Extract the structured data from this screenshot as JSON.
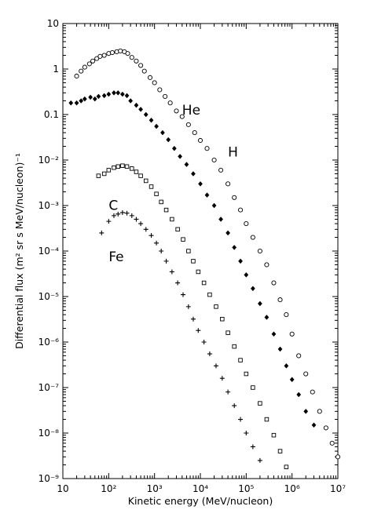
{
  "chart_data": {
    "type": "scatter",
    "title": "",
    "xlabel": "Kinetic energy (MeV/nucleon)",
    "ylabel": "Differential flux (m² sr s MeV/nucleon)⁻¹",
    "xscale": "log",
    "yscale": "log",
    "xlim": [
      10,
      10000000
    ],
    "ylim": [
      1e-09,
      10
    ],
    "grid": false,
    "legend": "none (series labelled inline)",
    "x_ticks": [
      10,
      100,
      1000,
      10000,
      100000,
      1000000,
      10000000
    ],
    "x_tick_labels": [
      "10",
      "10²",
      "10³",
      "10⁴",
      "10⁵",
      "10⁶",
      "10⁷"
    ],
    "y_ticks": [
      1e-09,
      1e-08,
      1e-07,
      1e-06,
      1e-05,
      0.0001,
      0.001,
      0.01,
      0.1,
      1,
      10
    ],
    "y_tick_labels": [
      "10⁻⁹",
      "10⁻⁸",
      "10⁻⁷",
      "10⁻⁶",
      "10⁻⁵",
      "10⁻⁴",
      "10⁻³",
      "10⁻²",
      "0.1",
      "1",
      "10"
    ],
    "series": [
      {
        "name": "H",
        "marker": "circle",
        "label_at": [
          40000,
          0.012
        ],
        "points": [
          [
            20,
            0.7
          ],
          [
            25,
            0.9
          ],
          [
            30,
            1.1
          ],
          [
            38,
            1.3
          ],
          [
            45,
            1.5
          ],
          [
            55,
            1.7
          ],
          [
            65,
            1.9
          ],
          [
            80,
            2.0
          ],
          [
            100,
            2.2
          ],
          [
            120,
            2.3
          ],
          [
            150,
            2.4
          ],
          [
            180,
            2.5
          ],
          [
            220,
            2.4
          ],
          [
            260,
            2.2
          ],
          [
            320,
            1.8
          ],
          [
            400,
            1.5
          ],
          [
            500,
            1.2
          ],
          [
            600,
            0.9
          ],
          [
            800,
            0.65
          ],
          [
            1000,
            0.5
          ],
          [
            1300,
            0.35
          ],
          [
            1700,
            0.25
          ],
          [
            2200,
            0.18
          ],
          [
            3000,
            0.12
          ],
          [
            4000,
            0.09
          ],
          [
            5500,
            0.06
          ],
          [
            7500,
            0.04
          ],
          [
            10000,
            0.027
          ],
          [
            14000,
            0.018
          ],
          [
            20000,
            0.01
          ],
          [
            28000,
            0.006
          ],
          [
            40000,
            0.003
          ],
          [
            55000,
            0.0015
          ],
          [
            75000,
            0.0008
          ],
          [
            100000,
            0.0004
          ],
          [
            140000,
            0.0002
          ],
          [
            200000,
            0.0001
          ],
          [
            280000,
            5e-05
          ],
          [
            400000,
            2e-05
          ],
          [
            550000,
            8.5e-06
          ],
          [
            750000,
            4e-06
          ],
          [
            1000000,
            1.5e-06
          ],
          [
            1400000,
            5e-07
          ],
          [
            2000000,
            2e-07
          ],
          [
            2800000,
            8e-08
          ],
          [
            4000000,
            3e-08
          ],
          [
            5500000,
            1.3e-08
          ],
          [
            7500000,
            6e-09
          ],
          [
            10000000,
            3e-09
          ]
        ]
      },
      {
        "name": "He",
        "marker": "diamond",
        "label_at": [
          4000,
          0.1
        ],
        "points": [
          [
            15,
            0.18
          ],
          [
            20,
            0.18
          ],
          [
            25,
            0.2
          ],
          [
            30,
            0.22
          ],
          [
            40,
            0.24
          ],
          [
            50,
            0.22
          ],
          [
            60,
            0.25
          ],
          [
            80,
            0.26
          ],
          [
            100,
            0.28
          ],
          [
            130,
            0.3
          ],
          [
            160,
            0.3
          ],
          [
            200,
            0.28
          ],
          [
            250,
            0.26
          ],
          [
            300,
            0.2
          ],
          [
            400,
            0.16
          ],
          [
            500,
            0.13
          ],
          [
            650,
            0.1
          ],
          [
            850,
            0.075
          ],
          [
            1100,
            0.055
          ],
          [
            1500,
            0.04
          ],
          [
            2000,
            0.028
          ],
          [
            2700,
            0.018
          ],
          [
            3600,
            0.012
          ],
          [
            5000,
            0.008
          ],
          [
            7000,
            0.005
          ],
          [
            10000,
            0.003
          ],
          [
            14000,
            0.0017
          ],
          [
            20000,
            0.001
          ],
          [
            28000,
            0.0005
          ],
          [
            40000,
            0.00025
          ],
          [
            55000,
            0.00012
          ],
          [
            75000,
            6e-05
          ],
          [
            100000,
            3e-05
          ],
          [
            140000,
            1.5e-05
          ],
          [
            200000,
            7e-06
          ],
          [
            280000,
            3.5e-06
          ],
          [
            400000,
            1.5e-06
          ],
          [
            550000,
            7e-07
          ],
          [
            750000,
            3e-07
          ],
          [
            1000000,
            1.5e-07
          ],
          [
            1400000,
            7e-08
          ],
          [
            2000000,
            3e-08
          ],
          [
            3000000,
            1.5e-08
          ]
        ]
      },
      {
        "name": "C",
        "marker": "square",
        "label_at": [
          100,
          0.0008
        ],
        "points": [
          [
            60,
            0.0045
          ],
          [
            80,
            0.005
          ],
          [
            100,
            0.006
          ],
          [
            130,
            0.0068
          ],
          [
            160,
            0.0072
          ],
          [
            200,
            0.0075
          ],
          [
            250,
            0.0072
          ],
          [
            320,
            0.0065
          ],
          [
            400,
            0.0055
          ],
          [
            500,
            0.0045
          ],
          [
            650,
            0.0035
          ],
          [
            850,
            0.0026
          ],
          [
            1100,
            0.0018
          ],
          [
            1400,
            0.0012
          ],
          [
            1800,
            0.0008
          ],
          [
            2400,
            0.0005
          ],
          [
            3200,
            0.0003
          ],
          [
            4200,
            0.00018
          ],
          [
            5500,
            0.0001
          ],
          [
            7000,
            6e-05
          ],
          [
            9000,
            3.5e-05
          ],
          [
            12000,
            2e-05
          ],
          [
            16000,
            1.1e-05
          ],
          [
            22000,
            6e-06
          ],
          [
            30000,
            3.2e-06
          ],
          [
            40000,
            1.6e-06
          ],
          [
            55000,
            8e-07
          ],
          [
            75000,
            4e-07
          ],
          [
            100000,
            2e-07
          ],
          [
            140000,
            1e-07
          ],
          [
            200000,
            4.5e-08
          ],
          [
            280000,
            2e-08
          ],
          [
            400000,
            9e-09
          ],
          [
            550000,
            4e-09
          ],
          [
            750000,
            1.8e-09
          ]
        ]
      },
      {
        "name": "Fe",
        "marker": "cross",
        "label_at": [
          100,
          6e-05
        ],
        "points": [
          [
            70,
            0.00025
          ],
          [
            100,
            0.00045
          ],
          [
            130,
            0.0006
          ],
          [
            160,
            0.00065
          ],
          [
            200,
            0.0007
          ],
          [
            250,
            0.00068
          ],
          [
            320,
            0.0006
          ],
          [
            400,
            0.0005
          ],
          [
            500,
            0.0004
          ],
          [
            650,
            0.0003
          ],
          [
            850,
            0.00022
          ],
          [
            1100,
            0.00015
          ],
          [
            1400,
            0.0001
          ],
          [
            1800,
            6e-05
          ],
          [
            2400,
            3.5e-05
          ],
          [
            3200,
            2e-05
          ],
          [
            4200,
            1.1e-05
          ],
          [
            5500,
            6e-06
          ],
          [
            7000,
            3.2e-06
          ],
          [
            9000,
            1.8e-06
          ],
          [
            12000,
            1e-06
          ],
          [
            16000,
            5.5e-07
          ],
          [
            22000,
            3e-07
          ],
          [
            30000,
            1.6e-07
          ],
          [
            40000,
            8e-08
          ],
          [
            55000,
            4e-08
          ],
          [
            75000,
            2e-08
          ],
          [
            100000,
            1e-08
          ],
          [
            140000,
            5e-09
          ],
          [
            200000,
            2.5e-09
          ]
        ]
      }
    ]
  }
}
